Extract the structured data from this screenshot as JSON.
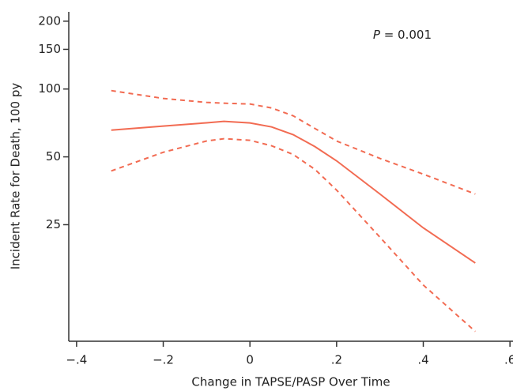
{
  "chart_data": {
    "type": "line",
    "annotation": {
      "italic": "P",
      "text": " = 0.001"
    },
    "xlabel": "Change in TAPSE/PASP Over Time",
    "ylabel": "Incident Rate for Death, 100 py",
    "x": [
      -0.32,
      -0.2,
      -0.1,
      -0.06,
      0,
      0.05,
      0.1,
      0.15,
      0.2,
      0.3,
      0.4,
      0.52
    ],
    "series": [
      {
        "name": "Estimate",
        "color": "#f26b52",
        "dashed": false,
        "values": [
          65.7,
          68.5,
          70.8,
          71.9,
          70.7,
          67.9,
          62.7,
          55.5,
          48.0,
          34.2,
          24.2,
          16.9
        ]
      },
      {
        "name": "Upper CI",
        "color": "#f26b52",
        "dashed": true,
        "values": [
          98.4,
          90.8,
          87.2,
          86.5,
          85.8,
          82.4,
          76.0,
          66.8,
          58.8,
          49.2,
          41.9,
          34.2
        ]
      },
      {
        "name": "Lower CI",
        "color": "#f26b52",
        "dashed": true,
        "values": [
          43.3,
          52.4,
          58.8,
          60.2,
          59.2,
          56.0,
          51.2,
          44.0,
          35.6,
          22.0,
          13.5,
          8.4
        ]
      }
    ],
    "xlim": [
      -0.418,
      0.607
    ],
    "xticks": [
      {
        "value": -0.4,
        "label": "−.4"
      },
      {
        "value": -0.2,
        "label": "−.2"
      },
      0,
      {
        "value": 0.2,
        "label": ".2"
      },
      {
        "value": 0.4,
        "label": ".4"
      },
      {
        "value": 0.6,
        "label": ".6"
      }
    ],
    "ylim": [
      7.6,
      220
    ],
    "yticks": [
      25,
      50,
      100,
      150,
      200
    ],
    "log_y": true
  }
}
